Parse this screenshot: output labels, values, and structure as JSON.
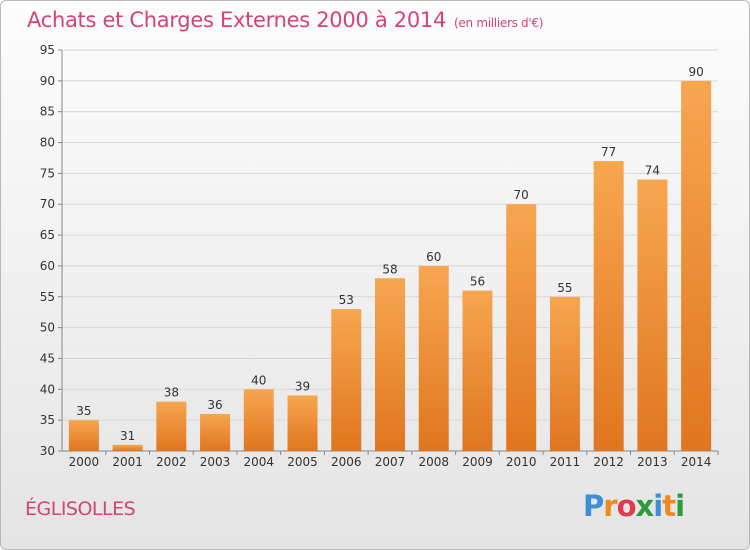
{
  "chart_data": {
    "type": "bar",
    "title": "Achats et Charges Externes 2000 à 2014",
    "unit": "(en milliers d'€)",
    "categories": [
      "2000",
      "2001",
      "2002",
      "2003",
      "2004",
      "2005",
      "2006",
      "2007",
      "2008",
      "2009",
      "2010",
      "2011",
      "2012",
      "2013",
      "2014"
    ],
    "values": [
      35,
      31,
      38,
      36,
      40,
      39,
      53,
      58,
      60,
      56,
      70,
      55,
      77,
      74,
      90
    ],
    "ylim": [
      30,
      95
    ],
    "yticks": [
      30,
      35,
      40,
      45,
      50,
      55,
      60,
      65,
      70,
      75,
      80,
      85,
      90,
      95
    ],
    "grid": true,
    "colors": {
      "bar_light": "#f7a650",
      "bar_dark": "#e0761f",
      "title": "#d5427a"
    }
  },
  "commune": "ÉGLISOLLES",
  "logo": {
    "letters": [
      "P",
      "r",
      "o",
      "x",
      "i",
      "t",
      "i"
    ],
    "colors": [
      "#3c8fd6",
      "#f08a1c",
      "#e33a4a",
      "#2c9c3a",
      "#3c8fd6",
      "#f08a1c",
      "#2c9c3a"
    ]
  }
}
